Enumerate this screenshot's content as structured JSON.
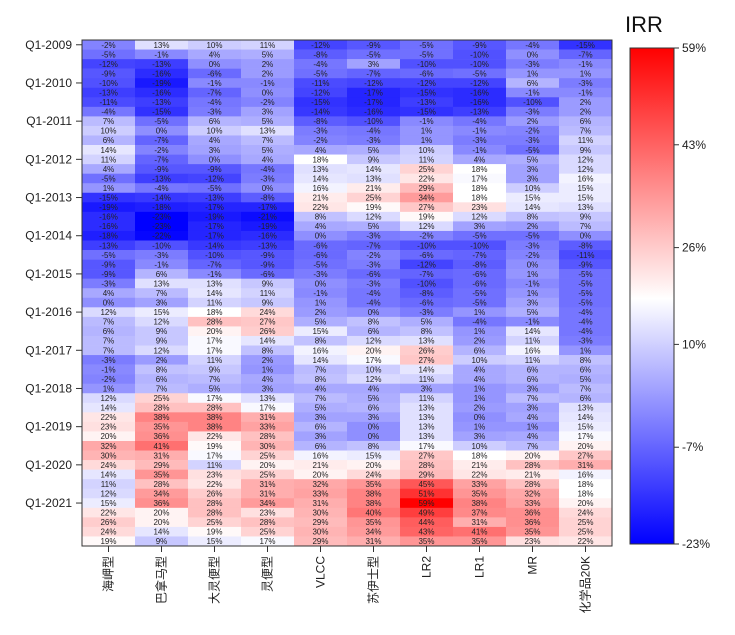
{
  "chart_data": {
    "type": "heatmap",
    "colorbar": {
      "title": "IRR",
      "min": -23,
      "max": 59,
      "center": 18,
      "ticks": [
        "59%",
        "43%",
        "26%",
        "10%",
        "-7%",
        "-23%"
      ],
      "tick_values": [
        59,
        43,
        26,
        10,
        -7,
        -23
      ],
      "colors": {
        "low": "#0000ff",
        "mid": "#ffffff",
        "high": "#ff0000"
      }
    },
    "columns": [
      "海岬型",
      "巴拿马型",
      "大灵便型",
      "灵便型",
      "VLCC",
      "苏伊士型",
      "LR2",
      "LR1",
      "MR",
      "化学品20K"
    ],
    "y_tick_labels": [
      "Q1-2009",
      "Q1-2010",
      "Q1-2011",
      "Q1-2012",
      "Q1-2013",
      "Q1-2014",
      "Q1-2015",
      "Q1-2016",
      "Q1-2017",
      "Q1-2018",
      "Q1-2019",
      "Q1-2020",
      "Q1-2021"
    ],
    "rows": [
      [
        -2,
        13,
        10,
        11,
        -12,
        -9,
        -5,
        -9,
        -4,
        -15
      ],
      [
        -5,
        -1,
        4,
        5,
        -8,
        -5,
        -5,
        -10,
        0,
        -7
      ],
      [
        -12,
        -13,
        0,
        2,
        -4,
        3,
        -10,
        -10,
        -3,
        -1
      ],
      [
        -9,
        -16,
        -6,
        2,
        -5,
        -7,
        -6,
        -5,
        1,
        1
      ],
      [
        -10,
        -19,
        -1,
        -1,
        -11,
        -12,
        -12,
        -12,
        6,
        -3
      ],
      [
        -13,
        -16,
        -7,
        0,
        -12,
        -17,
        -15,
        -16,
        -1,
        -1
      ],
      [
        -11,
        -13,
        -4,
        -2,
        -15,
        -17,
        -13,
        -16,
        -10,
        2
      ],
      [
        -4,
        -15,
        -3,
        3,
        -14,
        -16,
        -15,
        -13,
        -3,
        2
      ],
      [
        7,
        -5,
        6,
        5,
        -8,
        -10,
        -1,
        -4,
        2,
        6
      ],
      [
        10,
        0,
        10,
        13,
        -3,
        -4,
        1,
        -1,
        -2,
        7
      ],
      [
        6,
        -7,
        4,
        7,
        -2,
        -3,
        1,
        -3,
        -3,
        11
      ],
      [
        14,
        -2,
        3,
        5,
        4,
        5,
        10,
        -1,
        -5,
        9
      ],
      [
        11,
        -7,
        0,
        4,
        18,
        9,
        11,
        4,
        5,
        12
      ],
      [
        4,
        -9,
        -9,
        -4,
        13,
        14,
        25,
        18,
        3,
        12
      ],
      [
        -5,
        -13,
        -12,
        -3,
        14,
        13,
        22,
        17,
        3,
        16
      ],
      [
        1,
        -4,
        -5,
        0,
        16,
        21,
        29,
        18,
        10,
        15
      ],
      [
        -15,
        -14,
        -13,
        -8,
        21,
        25,
        34,
        18,
        15,
        15
      ],
      [
        -19,
        -18,
        -17,
        -17,
        22,
        19,
        27,
        23,
        14,
        13
      ],
      [
        -16,
        -23,
        -19,
        -21,
        8,
        12,
        19,
        12,
        8,
        9
      ],
      [
        -16,
        -23,
        -17,
        -19,
        4,
        5,
        12,
        3,
        2,
        7
      ],
      [
        -18,
        -22,
        -17,
        -16,
        0,
        -3,
        -2,
        -5,
        -5,
        0
      ],
      [
        -13,
        -10,
        -14,
        -13,
        -6,
        -7,
        -10,
        -10,
        -3,
        -8
      ],
      [
        -5,
        -3,
        -10,
        -9,
        -6,
        -2,
        -6,
        -7,
        -2,
        -11
      ],
      [
        -9,
        -1,
        -7,
        -9,
        -5,
        -3,
        -12,
        -8,
        0,
        -9
      ],
      [
        -9,
        6,
        -1,
        -6,
        -3,
        -6,
        -7,
        -6,
        1,
        -5
      ],
      [
        -3,
        13,
        13,
        9,
        0,
        -3,
        -10,
        -6,
        -1,
        -5
      ],
      [
        4,
        7,
        14,
        11,
        -1,
        -4,
        -8,
        -5,
        1,
        -5
      ],
      [
        0,
        3,
        11,
        9,
        1,
        -4,
        -6,
        -5,
        3,
        -5
      ],
      [
        12,
        15,
        18,
        24,
        2,
        0,
        -3,
        1,
        5,
        -4
      ],
      [
        7,
        12,
        28,
        27,
        5,
        8,
        5,
        -4,
        -1,
        -4
      ],
      [
        6,
        9,
        20,
        26,
        15,
        6,
        8,
        1,
        14,
        -4
      ],
      [
        7,
        9,
        17,
        14,
        8,
        12,
        13,
        2,
        11,
        -3
      ],
      [
        7,
        12,
        17,
        8,
        16,
        20,
        26,
        6,
        16,
        1
      ],
      [
        -3,
        2,
        11,
        2,
        14,
        17,
        27,
        10,
        11,
        8
      ],
      [
        -1,
        8,
        9,
        1,
        7,
        10,
        14,
        4,
        6,
        6
      ],
      [
        -2,
        6,
        7,
        4,
        8,
        12,
        11,
        4,
        6,
        5
      ],
      [
        1,
        7,
        5,
        3,
        4,
        4,
        3,
        1,
        3,
        7
      ],
      [
        12,
        25,
        17,
        13,
        7,
        5,
        11,
        1,
        7,
        6
      ],
      [
        14,
        28,
        28,
        17,
        5,
        6,
        13,
        2,
        3,
        13
      ],
      [
        22,
        38,
        38,
        31,
        3,
        3,
        13,
        0,
        4,
        14
      ],
      [
        23,
        35,
        38,
        33,
        6,
        0,
        13,
        1,
        1,
        15
      ],
      [
        20,
        36,
        22,
        28,
        3,
        0,
        13,
        3,
        4,
        17
      ],
      [
        32,
        41,
        19,
        30,
        6,
        8,
        17,
        10,
        7,
        20
      ],
      [
        30,
        31,
        17,
        25,
        16,
        15,
        27,
        18,
        20,
        27
      ],
      [
        24,
        29,
        11,
        20,
        21,
        20,
        28,
        21,
        28,
        31
      ],
      [
        14,
        35,
        23,
        25,
        20,
        24,
        29,
        22,
        21,
        16
      ],
      [
        11,
        28,
        22,
        31,
        32,
        35,
        45,
        33,
        28,
        18
      ],
      [
        12,
        34,
        26,
        31,
        33,
        38,
        51,
        35,
        32,
        18
      ],
      [
        15,
        36,
        28,
        34,
        31,
        38,
        59,
        38,
        33,
        20
      ],
      [
        22,
        20,
        28,
        23,
        30,
        40,
        49,
        37,
        36,
        24
      ],
      [
        26,
        20,
        25,
        28,
        29,
        35,
        44,
        31,
        36,
        25
      ],
      [
        24,
        14,
        19,
        25,
        30,
        34,
        43,
        41,
        35,
        25
      ],
      [
        19,
        9,
        15,
        17,
        29,
        31,
        35,
        35,
        23,
        22
      ]
    ]
  }
}
